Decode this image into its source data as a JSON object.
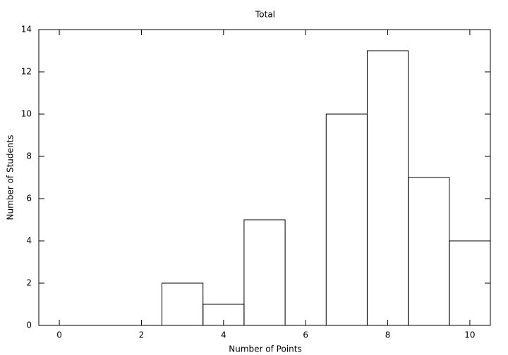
{
  "chart_data": {
    "type": "histogram",
    "title": "Total",
    "x_label": "Number of Points",
    "y_label": "Number of Students",
    "bins": [
      -0.5,
      0.5,
      1.5,
      2.5,
      3.5,
      4.5,
      5.5,
      6.5,
      7.5,
      8.5,
      9.5,
      10.5
    ],
    "values": [
      0,
      0,
      0,
      2,
      1,
      5,
      0,
      10,
      13,
      7,
      4
    ],
    "color": "#000000",
    "xlim": [
      -0.5,
      10.5
    ],
    "xticks": [
      0,
      2,
      4,
      6,
      8,
      10
    ],
    "ylim": [
      0,
      14
    ],
    "yticks": [
      0,
      2,
      4,
      6,
      8,
      10,
      12,
      14
    ]
  }
}
